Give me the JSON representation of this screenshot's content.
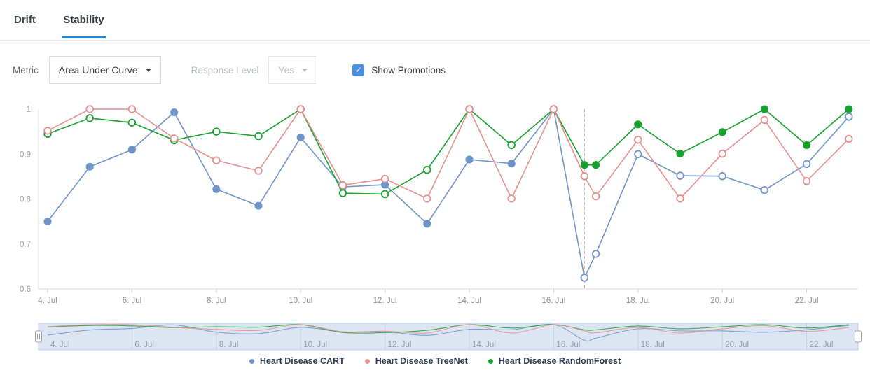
{
  "tabs": [
    {
      "label": "Drift",
      "active": false
    },
    {
      "label": "Stability",
      "active": true
    }
  ],
  "controls": {
    "metric_label": "Metric",
    "metric_value": "Area Under Curve",
    "response_level_label": "Response Level",
    "response_level_value": "Yes",
    "response_level_disabled": true,
    "show_promotions_label": "Show Promotions",
    "show_promotions_checked": true,
    "checkmark": "✓"
  },
  "colors": {
    "accent_blue": "#1d82e2",
    "checkbox_blue": "#4a90e2",
    "axis_line": "#d8dade",
    "axis_text": "#9aa0a6",
    "promotion_line": "#b5b5b5",
    "navigator_fill": "#dde4f2",
    "navigator_border": "#c5cee1",
    "navigator_text": "#939cb0"
  },
  "chart_data": {
    "type": "line",
    "title": "",
    "xlabel": "",
    "ylabel": "",
    "x_unit": "day_of_july",
    "ylim": [
      0.6,
      1.0
    ],
    "grid": false,
    "legend_position": "bottom",
    "y_ticks": [
      {
        "v": 1,
        "label": "1"
      },
      {
        "v": 0.9,
        "label": "0.9"
      },
      {
        "v": 0.8,
        "label": "0.8"
      },
      {
        "v": 0.7,
        "label": "0.7"
      },
      {
        "v": 0.6,
        "label": "0.6"
      }
    ],
    "x_ticks": [
      {
        "d": 4,
        "label": "4. Jul"
      },
      {
        "d": 6,
        "label": "6. Jul"
      },
      {
        "d": 8,
        "label": "8. Jul"
      },
      {
        "d": 10,
        "label": "10. Jul"
      },
      {
        "d": 12,
        "label": "12. Jul"
      },
      {
        "d": 14,
        "label": "14. Jul"
      },
      {
        "d": 16,
        "label": "16. Jul"
      },
      {
        "d": 18,
        "label": "18. Jul"
      },
      {
        "d": 20,
        "label": "20. Jul"
      },
      {
        "d": 22,
        "label": "22. Jul"
      }
    ],
    "x": [
      4,
      5,
      6,
      7,
      8,
      9,
      10,
      11,
      12,
      13,
      14,
      15,
      16,
      16.73,
      17,
      18,
      19,
      20,
      21,
      22,
      23
    ],
    "promotions": [
      {
        "x": 16.73
      }
    ],
    "series": [
      {
        "name": "Heart Disease CART",
        "color": "#6e94c9",
        "values": [
          0.75,
          0.872,
          0.91,
          0.993,
          0.822,
          0.785,
          0.937,
          0.827,
          0.832,
          0.745,
          0.888,
          0.879,
          1.0,
          0.625,
          0.678,
          0.9,
          0.852,
          0.851,
          0.82,
          0.878,
          0.983
        ],
        "marker_filled": [
          true,
          true,
          true,
          true,
          true,
          true,
          true,
          true,
          true,
          true,
          true,
          true,
          true,
          false,
          false,
          false,
          false,
          false,
          false,
          false,
          false
        ]
      },
      {
        "name": "Heart Disease RandomForest",
        "color": "#18a12c",
        "values": [
          0.945,
          0.98,
          0.97,
          0.931,
          0.95,
          0.94,
          1.0,
          0.813,
          0.811,
          0.865,
          1.0,
          0.92,
          1.0,
          0.876,
          0.876,
          0.966,
          0.901,
          0.949,
          1.0,
          0.92,
          1.0
        ],
        "marker_filled": [
          false,
          false,
          false,
          false,
          false,
          false,
          false,
          false,
          false,
          false,
          false,
          false,
          false,
          true,
          true,
          true,
          true,
          true,
          true,
          true,
          true
        ]
      },
      {
        "name": "Heart Disease TreeNet",
        "color": "#e78f8f",
        "values": [
          0.952,
          1.0,
          1.0,
          0.935,
          0.886,
          0.863,
          1.0,
          0.831,
          0.845,
          0.801,
          1.0,
          0.801,
          1.0,
          0.851,
          0.806,
          0.932,
          0.801,
          0.901,
          0.976,
          0.84,
          0.934
        ],
        "marker_filled": [
          false,
          false,
          false,
          false,
          false,
          false,
          false,
          false,
          false,
          false,
          false,
          false,
          false,
          false,
          false,
          false,
          false,
          false,
          false,
          false,
          false
        ]
      }
    ],
    "legend_order": [
      0,
      2,
      1
    ]
  }
}
